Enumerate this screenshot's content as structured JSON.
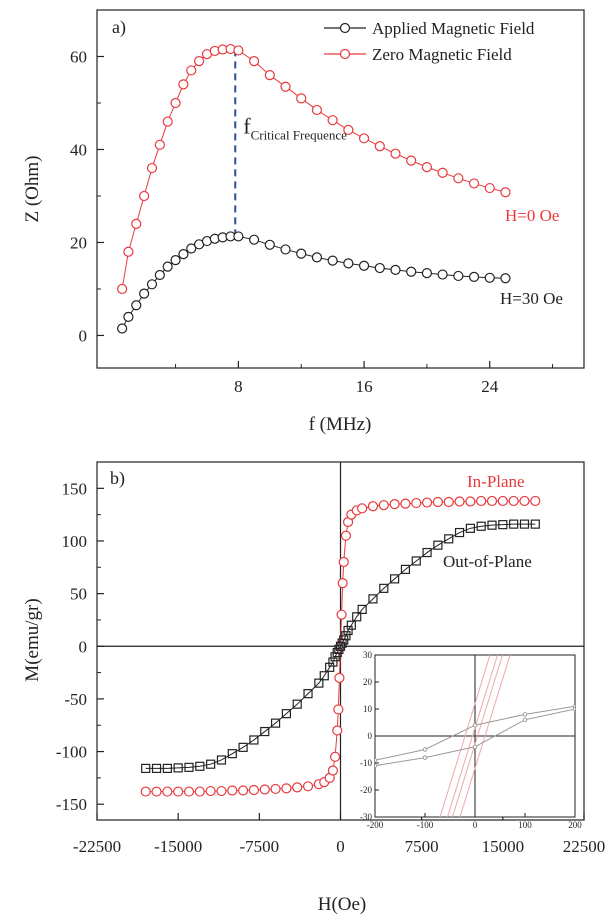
{
  "chart_data": [
    {
      "type": "scatter",
      "panel_label": "a)",
      "xlabel": "f (MHz)",
      "ylabel": "Z (Ohm)",
      "xlim": [
        -1,
        30
      ],
      "ylim": [
        -7,
        70
      ],
      "xticks": [
        8,
        16,
        24
      ],
      "yticks": [
        0,
        20,
        40,
        60
      ],
      "legend": {
        "placement": "top-right",
        "entries": [
          "Applied Magnetic Field",
          "Zero Magnetic Field"
        ]
      },
      "series": [
        {
          "name": "Zero Magnetic Field",
          "color": "#e8393c",
          "marker": "circle",
          "label": "H=0 Oe",
          "x": [
            0.6,
            1.0,
            1.5,
            2.0,
            2.5,
            3.0,
            3.5,
            4.0,
            4.5,
            5.0,
            5.5,
            6.0,
            6.5,
            7.0,
            7.5,
            8.0,
            9.0,
            10.0,
            11.0,
            12.0,
            13.0,
            14.0,
            15.0,
            16.0,
            17.0,
            18.0,
            19.0,
            20.0,
            21.0,
            22.0,
            23.0,
            24.0,
            25.0
          ],
          "y": [
            10,
            18,
            24,
            30,
            36,
            41,
            46,
            50,
            54,
            57,
            59,
            60.5,
            61.2,
            61.5,
            61.6,
            61.3,
            59,
            56,
            53.5,
            51,
            48.5,
            46.3,
            44.2,
            42.4,
            40.7,
            39.1,
            37.6,
            36.2,
            35,
            33.8,
            32.7,
            31.7,
            30.8
          ]
        },
        {
          "name": "Applied Magnetic Field",
          "color": "#222222",
          "marker": "circle",
          "label": "H=30 Oe",
          "x": [
            0.6,
            1.0,
            1.5,
            2.0,
            2.5,
            3.0,
            3.5,
            4.0,
            4.5,
            5.0,
            5.5,
            6.0,
            6.5,
            7.0,
            7.5,
            8.0,
            9.0,
            10.0,
            11.0,
            12.0,
            13.0,
            14.0,
            15.0,
            16.0,
            17.0,
            18.0,
            19.0,
            20.0,
            21.0,
            22.0,
            23.0,
            24.0,
            25.0
          ],
          "y": [
            1.5,
            4,
            6.5,
            9,
            11,
            13,
            14.8,
            16.2,
            17.5,
            18.7,
            19.6,
            20.3,
            20.8,
            21.1,
            21.3,
            21.3,
            20.6,
            19.5,
            18.5,
            17.6,
            16.8,
            16.1,
            15.5,
            15,
            14.5,
            14.1,
            13.7,
            13.4,
            13.1,
            12.8,
            12.6,
            12.4,
            12.3
          ]
        }
      ],
      "annotations": {
        "critical_frequency": {
          "x": 7.8,
          "y_from": 21.3,
          "y_to": 61.6,
          "label_main": "f",
          "label_sub": "Critical Frequence"
        }
      }
    },
    {
      "type": "scatter",
      "panel_label": "b)",
      "xlabel": "H(Oe)",
      "ylabel": "M(emu/gr)",
      "xlim": [
        -22500,
        22500
      ],
      "ylim": [
        -165,
        175
      ],
      "xticks": [
        -22500,
        -15000,
        -7500,
        0,
        7500,
        15000,
        22500
      ],
      "xtick_labels": [
        "-22500",
        "-15000",
        "-7500",
        "0",
        "7500",
        "15000",
        "22500"
      ],
      "yticks": [
        -150,
        -100,
        -50,
        0,
        50,
        100,
        150
      ],
      "zero_lines": true,
      "series": [
        {
          "name": "In-Plane",
          "color": "#e8393c",
          "marker": "circle",
          "x": [
            -18000,
            -17000,
            -16000,
            -15000,
            -14000,
            -13000,
            -12000,
            -11000,
            -10000,
            -9000,
            -8000,
            -7000,
            -6000,
            -5000,
            -4000,
            -3000,
            -2000,
            -1500,
            -1000,
            -700,
            -500,
            -300,
            -200,
            -100,
            0,
            100,
            200,
            300,
            500,
            700,
            1000,
            1500,
            2000,
            3000,
            4000,
            5000,
            6000,
            7000,
            8000,
            9000,
            10000,
            11000,
            12000,
            13000,
            14000,
            15000,
            16000,
            17000,
            18000
          ],
          "y": [
            -138,
            -138,
            -138,
            -138,
            -138,
            -138,
            -137.5,
            -137.5,
            -137,
            -137,
            -136.5,
            -136,
            -135.5,
            -135,
            -134,
            -133,
            -131,
            -129,
            -125,
            -118,
            -105,
            -80,
            -60,
            -30,
            0,
            30,
            60,
            80,
            105,
            118,
            125,
            129,
            131,
            133,
            134,
            135,
            135.5,
            136,
            136.5,
            137,
            137,
            137.5,
            137.5,
            138,
            138,
            138,
            138,
            138,
            138
          ]
        },
        {
          "name": "Out-of-Plane",
          "color": "#222222",
          "marker": "square",
          "x": [
            -18000,
            -17000,
            -16000,
            -15000,
            -14000,
            -13000,
            -12000,
            -11000,
            -10000,
            -9000,
            -8000,
            -7000,
            -6000,
            -5000,
            -4000,
            -3000,
            -2000,
            -1500,
            -1000,
            -700,
            -500,
            -300,
            -150,
            0,
            150,
            300,
            500,
            700,
            1000,
            1500,
            2000,
            3000,
            4000,
            5000,
            6000,
            7000,
            8000,
            9000,
            10000,
            11000,
            12000,
            13000,
            14000,
            15000,
            16000,
            17000,
            18000
          ],
          "y": [
            -116,
            -116,
            -116,
            -115.5,
            -115,
            -114,
            -112,
            -108,
            -102,
            -96,
            -89,
            -81,
            -73,
            -64,
            -55,
            -45,
            -35,
            -28,
            -20,
            -15,
            -10,
            -6,
            -3,
            0,
            3,
            6,
            10,
            15,
            20,
            28,
            35,
            45,
            55,
            64,
            73,
            81,
            89,
            96,
            102,
            108,
            112,
            114,
            115,
            115.5,
            116,
            116,
            116
          ]
        }
      ],
      "series_labels": [
        "In-Plane",
        "Out-of-Plane"
      ],
      "inset": {
        "xlim": [
          -200,
          200
        ],
        "ylim": [
          -30,
          30
        ],
        "xticks": [
          -200,
          -100,
          0,
          100,
          200
        ],
        "yticks": [
          -30,
          -20,
          -10,
          0,
          10,
          20,
          30
        ],
        "loops": [
          {
            "series": "Out-of-Plane",
            "x": [
              -200,
              -100,
              0,
              100,
              200
            ],
            "y_upper": [
              -9,
              -5,
              4,
              8,
              11
            ],
            "y_lower": [
              -11,
              -8,
              -4,
              6,
              10
            ]
          },
          {
            "series": "In-Plane",
            "lines": [
              {
                "x": [
                  -30,
                  70
                ],
                "y": [
                  -30,
                  30
                ]
              },
              {
                "x": [
                  -45,
                  55
                ],
                "y": [
                  -30,
                  30
                ]
              },
              {
                "x": [
                  -55,
                  45
                ],
                "y": [
                  -30,
                  30
                ]
              },
              {
                "x": [
                  -70,
                  30
                ],
                "y": [
                  -30,
                  30
                ]
              }
            ]
          }
        ]
      }
    }
  ]
}
